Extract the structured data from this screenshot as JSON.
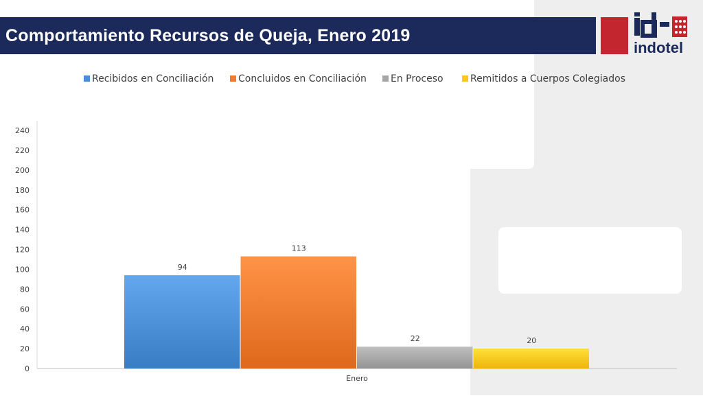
{
  "header": {
    "title": "Comportamiento Recursos de Queja, Enero 2019"
  },
  "logo": {
    "text": "indotel",
    "brand_red": "#c3262f",
    "brand_navy": "#1b2a5a"
  },
  "chart_data": {
    "type": "bar",
    "categories": [
      "Enero"
    ],
    "series": [
      {
        "name": "Recibidos en Conciliación",
        "values": [
          94
        ],
        "color": "#4a8fd6"
      },
      {
        "name": "Concluidos en Conciliación",
        "values": [
          113
        ],
        "color": "#f07a2e"
      },
      {
        "name": "En Proceso",
        "values": [
          22
        ],
        "color": "#a6a6a6"
      },
      {
        "name": "Remitidos a Cuerpos Colegiados",
        "values": [
          20
        ],
        "color": "#ffc71e"
      }
    ],
    "ylim": [
      0,
      240
    ],
    "yticks": [
      0,
      20,
      40,
      60,
      80,
      100,
      120,
      140,
      160,
      180,
      200,
      220,
      240
    ],
    "legend_position": "top",
    "grid": false,
    "data_labels": true
  }
}
